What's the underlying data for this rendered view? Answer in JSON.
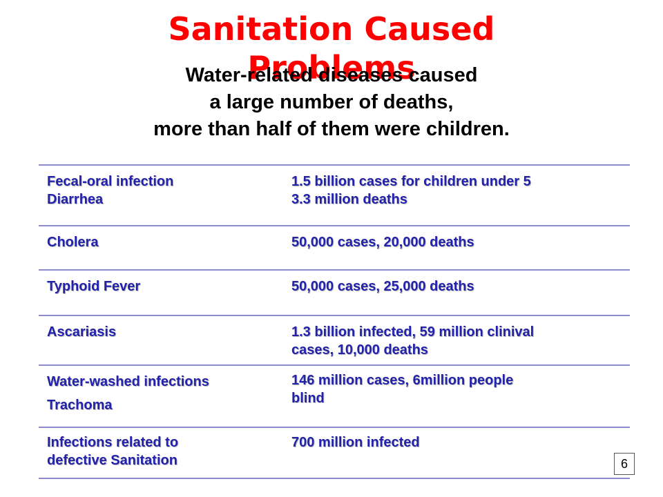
{
  "slide": {
    "title_line1": "Sanitation Caused",
    "title_line2": "Problems",
    "subtitle_line1": "Water-related diseases caused",
    "subtitle_line2": "a large number of deaths,",
    "subtitle_line3": "more than half of them were children.",
    "page_number": "6"
  },
  "table": {
    "rows": [
      {
        "disease": [
          "Fecal-oral infection",
          "Diarrhea"
        ],
        "impact": [
          "1.5 billion cases for children under 5",
          "3.3 million deaths"
        ]
      },
      {
        "disease": [
          "Cholera"
        ],
        "impact": [
          "50,000 cases, 20,000 deaths"
        ]
      },
      {
        "disease": [
          "Typhoid Fever"
        ],
        "impact": [
          "50,000 cases, 25,000 deaths"
        ]
      },
      {
        "disease": [
          "Ascariasis"
        ],
        "impact": [
          "1.3 billion infected, 59 million clinival",
          "cases, 10,000 deaths"
        ]
      },
      {
        "disease": [
          "Water-washed infections",
          "Trachoma"
        ],
        "impact": [
          "146 million cases, 6million people",
          "blind"
        ]
      },
      {
        "disease": [
          "Infections related to",
          "defective Sanitation"
        ],
        "impact": [
          "700 million infected"
        ]
      }
    ]
  }
}
